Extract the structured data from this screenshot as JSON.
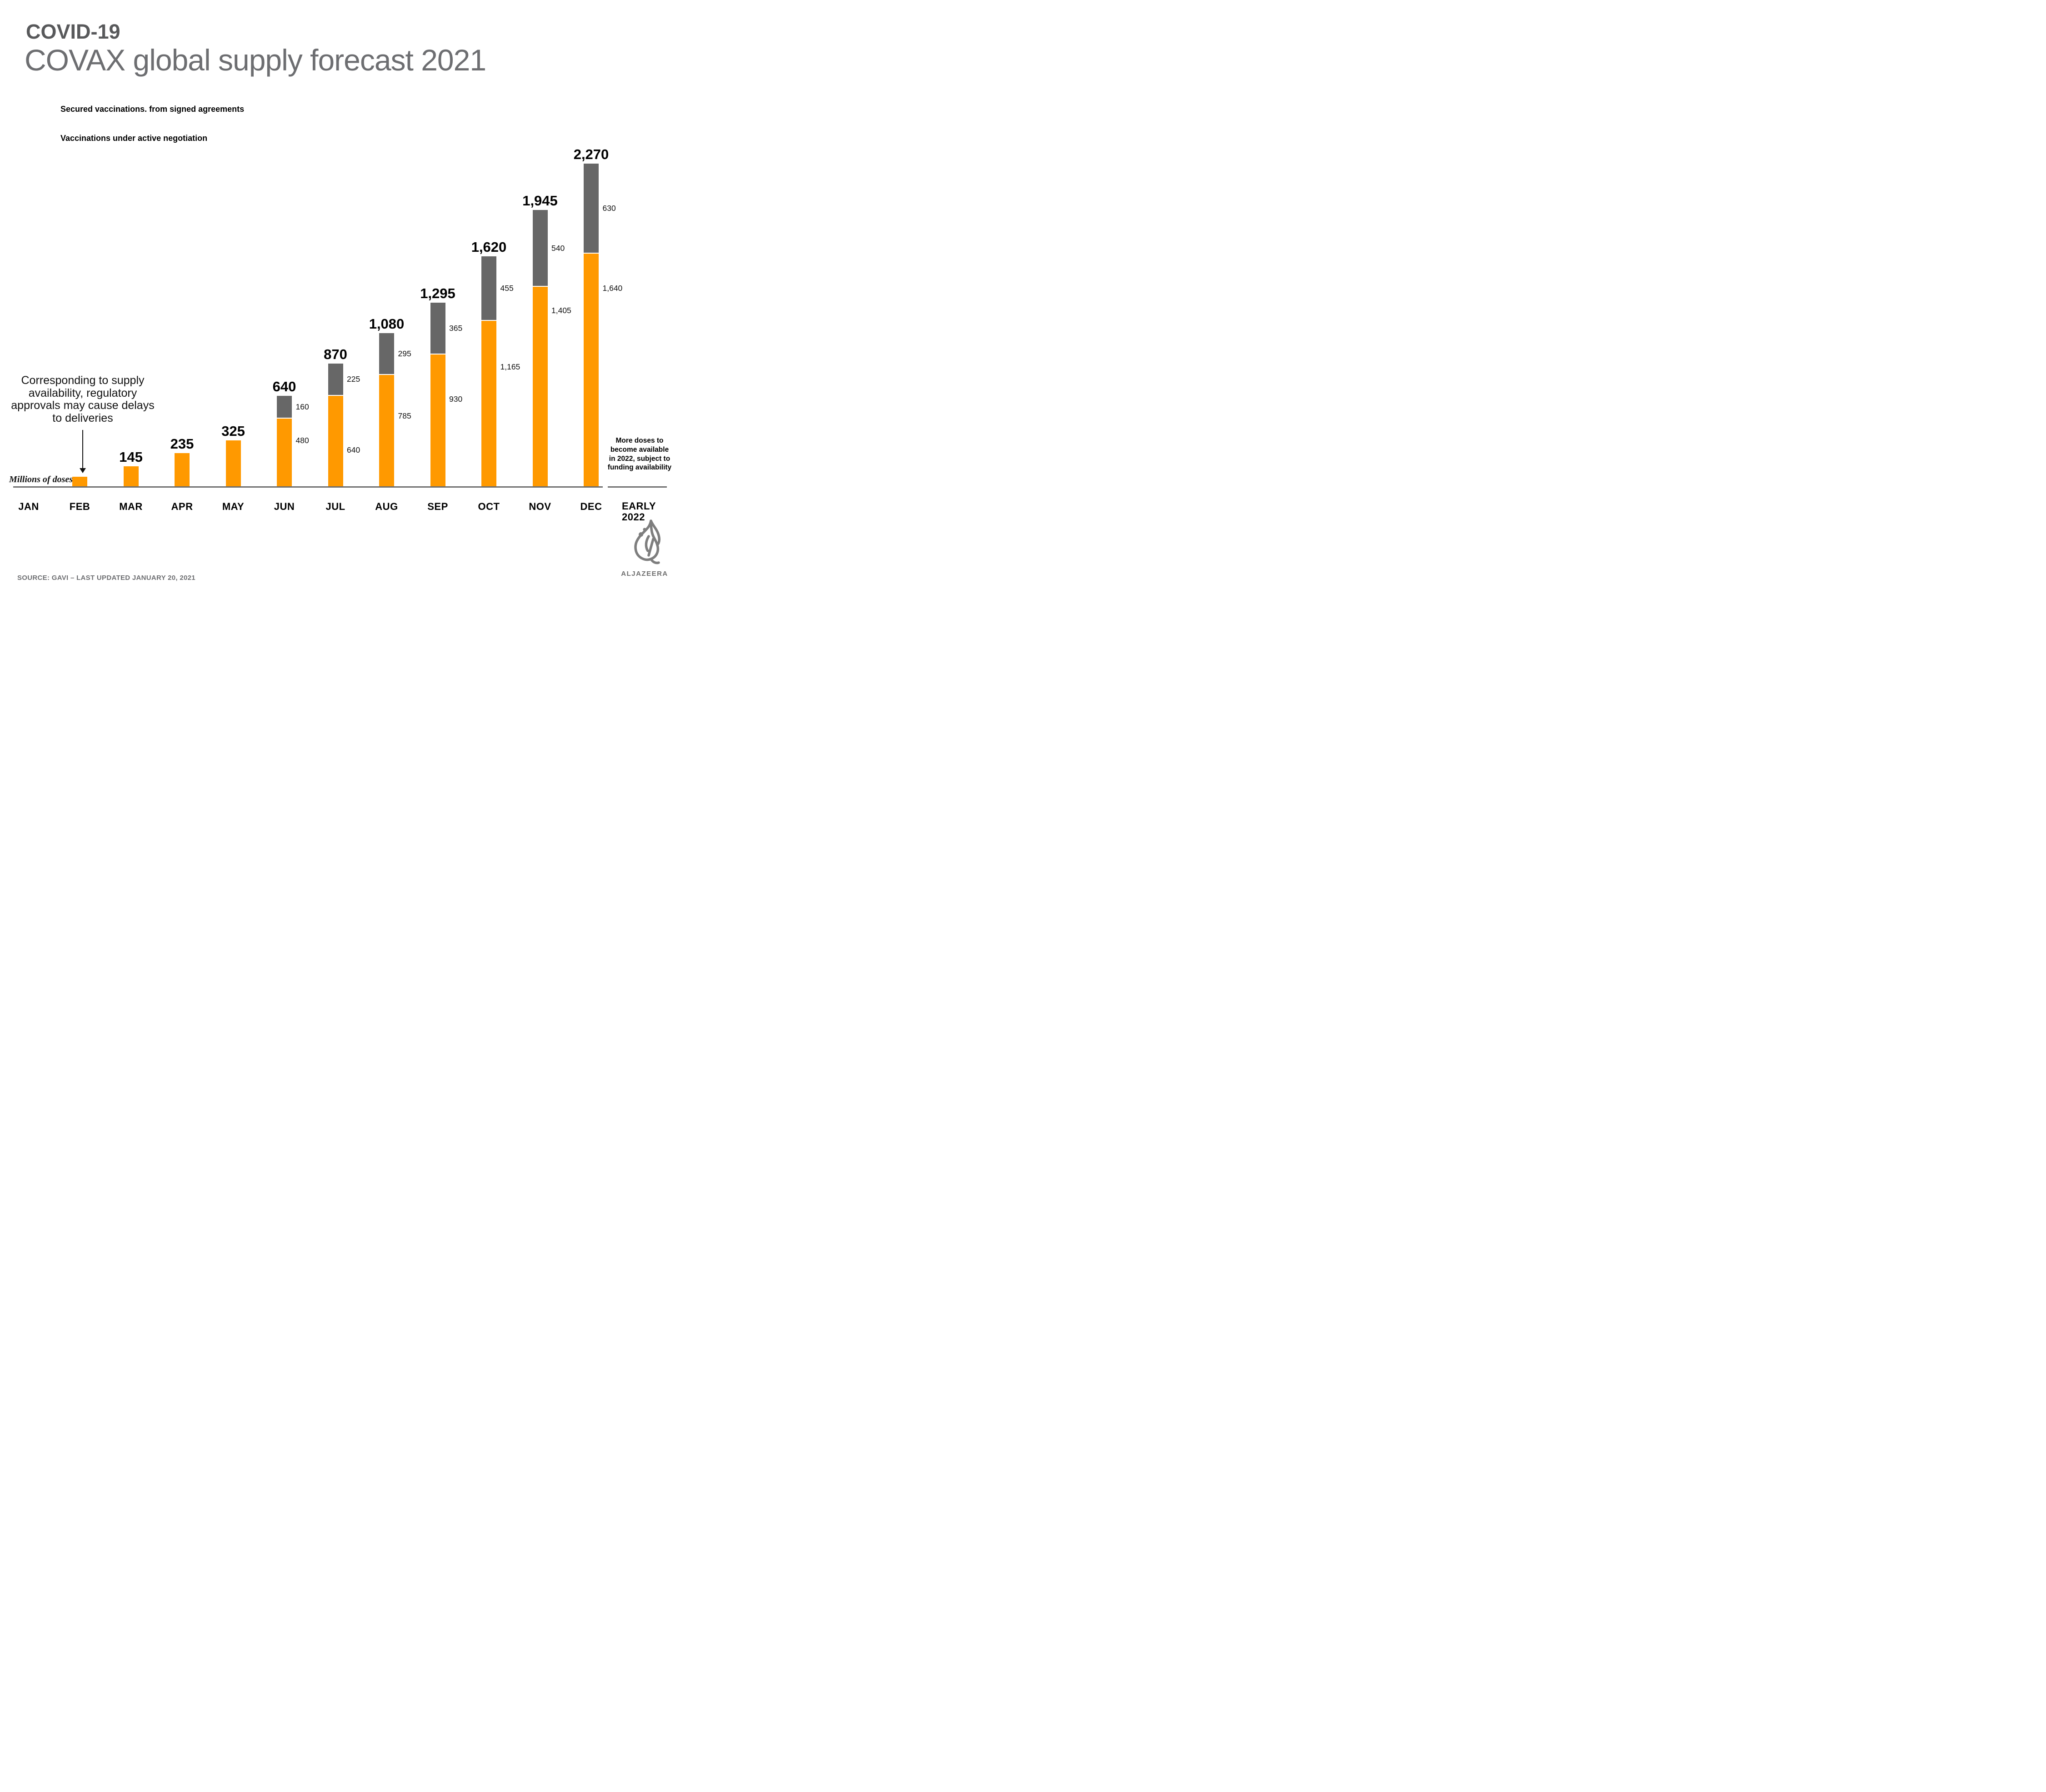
{
  "header": {
    "eyebrow": "COVID-19",
    "title": "COVAX global supply forecast 2021"
  },
  "legend": [
    {
      "label": "Secured vaccinations. from signed agreements",
      "color": "#FF9900"
    },
    {
      "label": "Vaccinations under active negotiation",
      "color": "#676767"
    }
  ],
  "annotation": {
    "lines": [
      "Corresponding to supply",
      "availability, regulatory",
      "approvals may cause delays",
      "to deliveries"
    ]
  },
  "axis_note": "Millions of doses",
  "right_note": {
    "lines": [
      "More doses to",
      "become available",
      "in 2022, subject to",
      "funding availability"
    ]
  },
  "source": "SOURCE: GAVI – LAST UPDATED JANUARY 20, 2021",
  "brand": "ALJAZEERA",
  "chart_data": {
    "type": "bar",
    "stacked": true,
    "title": "COVAX global supply forecast 2021",
    "unit": "Millions of doses",
    "grid": false,
    "categories": [
      "JAN",
      "FEB",
      "MAR",
      "APR",
      "MAY",
      "JUN",
      "JUL",
      "AUG",
      "SEP",
      "OCT",
      "NOV",
      "DEC",
      "EARLY 2022"
    ],
    "early_label_lines": [
      "EARLY",
      "2022"
    ],
    "series": [
      {
        "name": "Secured vaccinations. from signed agreements",
        "color": "#FF9900",
        "values": [
          0,
          70,
          145,
          235,
          325,
          480,
          640,
          785,
          930,
          1165,
          1405,
          1640,
          null
        ]
      },
      {
        "name": "Vaccinations under active negotiation",
        "color": "#676767",
        "values": [
          0,
          0,
          0,
          0,
          0,
          160,
          225,
          295,
          365,
          455,
          540,
          630,
          null
        ]
      }
    ],
    "total_labels": [
      null,
      null,
      "145",
      "235",
      "325",
      "640",
      "870",
      "1,080",
      "1,295",
      "1,620",
      "1,945",
      "2,270",
      null
    ],
    "secured_labels": [
      null,
      null,
      null,
      null,
      null,
      "480",
      "640",
      "785",
      "930",
      "1,165",
      "1,405",
      "1,640",
      null
    ],
    "negotiation_labels": [
      null,
      null,
      null,
      null,
      null,
      "160",
      "225",
      "295",
      "365",
      "455",
      "540",
      "630",
      null
    ],
    "notes": {
      "feb_bar_unlabeled_estimate": true
    }
  }
}
